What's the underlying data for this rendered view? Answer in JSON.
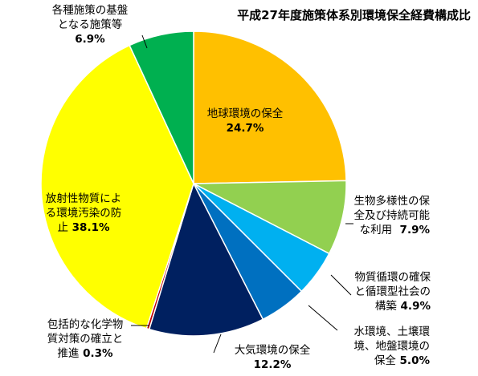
{
  "chart_data": {
    "type": "pie",
    "title": "平成27年度施策体系別環境保全経費構成比",
    "slices": [
      {
        "lines": [
          "地球環境の保全"
        ],
        "value_text": "24.7%",
        "value": 24.7,
        "color": "#FFC000"
      },
      {
        "lines": [
          "生物多様性の保",
          "全及び持続可能",
          "な利用"
        ],
        "value_text": "7.9%",
        "value": 7.9,
        "color": "#92D050"
      },
      {
        "lines": [
          "物質循環の確保",
          "と循環型社会の",
          "構築"
        ],
        "value_text": "4.9%",
        "value": 4.9,
        "color": "#00B0F0"
      },
      {
        "lines": [
          "水環境、土壌環",
          "境、地盤環境の",
          "保全"
        ],
        "value_text": "5.0%",
        "value": 5.0,
        "color": "#0070C0"
      },
      {
        "lines": [
          "大気環境の保全"
        ],
        "value_text": "12.2%",
        "value": 12.2,
        "color": "#002060"
      },
      {
        "lines": [
          "包括的な化学物",
          "質対策の確立と",
          "推進"
        ],
        "value_text": "0.3%",
        "value": 0.3,
        "color": "#C00000"
      },
      {
        "lines": [
          "放射性物質によ",
          "る環境汚染の防",
          "止"
        ],
        "value_text": "38.1%",
        "value": 38.1,
        "color": "#FFFF00"
      },
      {
        "lines": [
          "各種施策の基盤",
          "となる施策等"
        ],
        "value_text": "6.9%",
        "value": 6.9,
        "color": "#00B050"
      }
    ]
  }
}
